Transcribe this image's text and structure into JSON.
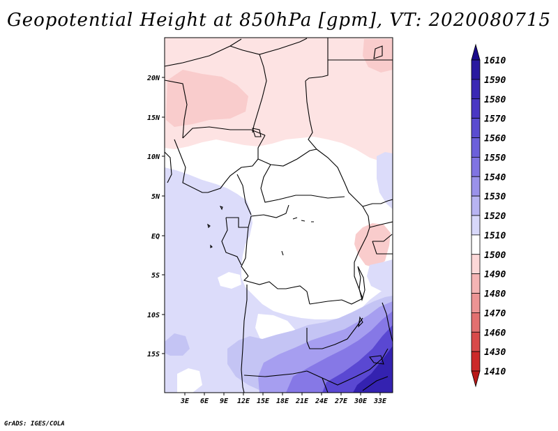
{
  "title": "Geopotential Height at 850hPa [gpm], VT: 2020080715",
  "credit": "GrADS: IGES/COLA",
  "map": {
    "lon_labels": [
      "3E",
      "6E",
      "9E",
      "12E",
      "15E",
      "18E",
      "21E",
      "24E",
      "27E",
      "30E",
      "33E"
    ],
    "lat_labels": [
      "20N",
      "15N",
      "10N",
      "5N",
      "EQ",
      "5S",
      "10S",
      "15S"
    ]
  },
  "colorbar": {
    "levels": [
      "1610",
      "1590",
      "1580",
      "1570",
      "1560",
      "1550",
      "1540",
      "1530",
      "1520",
      "1510",
      "1500",
      "1490",
      "1480",
      "1470",
      "1460",
      "1430",
      "1410"
    ],
    "colors": [
      "#1a0a8a",
      "#2a1aa0",
      "#3a28b4",
      "#4a38c4",
      "#5a4cd0",
      "#6c60da",
      "#8074e2",
      "#9a92ea",
      "#b8b4f2",
      "#d8d8fa",
      "#ffffff",
      "#fcd8d8",
      "#f4b4b4",
      "#ec9494",
      "#e27070",
      "#d84a4a",
      "#cc2a2a",
      "#b81818"
    ]
  },
  "field_colors": {
    "land_white": "#ffffff",
    "pink_light": "#fde3e3",
    "pink_mid": "#f9cccc",
    "lav_light": "#dcdcfa",
    "lav_mid": "#c4c4f4",
    "blue_1": "#a69ef0",
    "blue_2": "#8678e6",
    "blue_3": "#5a48d2",
    "blue_4": "#3422b0"
  }
}
